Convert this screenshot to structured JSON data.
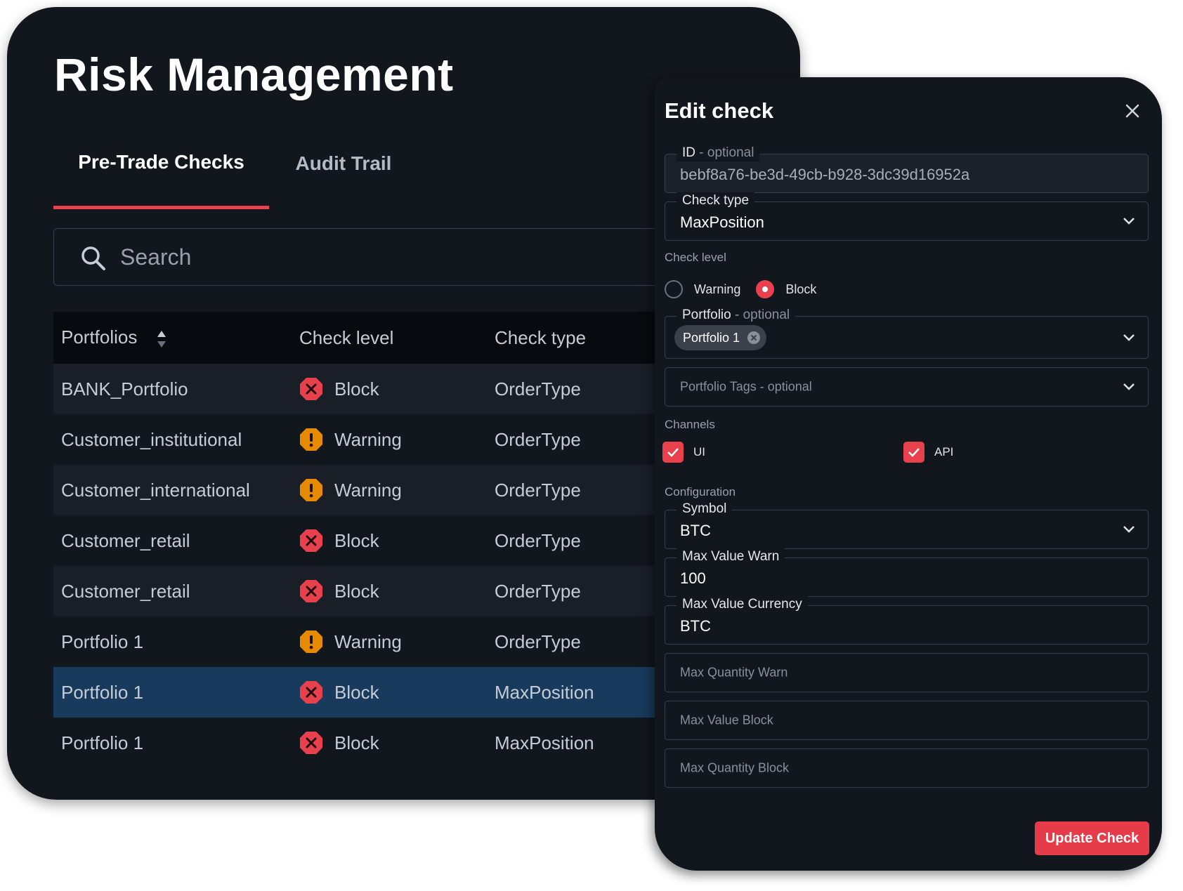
{
  "page": {
    "title": "Risk Management"
  },
  "tabs": [
    {
      "label": "Pre-Trade Checks",
      "active": true
    },
    {
      "label": "Audit Trail",
      "active": false
    }
  ],
  "search": {
    "placeholder": "Search",
    "icon": "search-icon"
  },
  "table": {
    "headers": {
      "portfolios": "Portfolios",
      "check_level": "Check level",
      "check_type": "Check type"
    },
    "rows": [
      {
        "portfolio": "BANK_Portfolio",
        "level": "Block",
        "type": "OrderType",
        "selected": false
      },
      {
        "portfolio": "Customer_institutional",
        "level": "Warning",
        "type": "OrderType",
        "selected": false
      },
      {
        "portfolio": "Customer_international",
        "level": "Warning",
        "type": "OrderType",
        "selected": false
      },
      {
        "portfolio": "Customer_retail",
        "level": "Block",
        "type": "OrderType",
        "selected": false
      },
      {
        "portfolio": "Customer_retail",
        "level": "Block",
        "type": "OrderType",
        "selected": false
      },
      {
        "portfolio": "Portfolio 1",
        "level": "Warning",
        "type": "OrderType",
        "selected": false
      },
      {
        "portfolio": "Portfolio 1",
        "level": "Block",
        "type": "MaxPosition",
        "selected": true
      },
      {
        "portfolio": "Portfolio 1",
        "level": "Block",
        "type": "MaxPosition",
        "selected": false
      }
    ]
  },
  "edit_panel": {
    "title": "Edit check",
    "id_field": {
      "label": "ID",
      "optional": " - optional",
      "value": "bebf8a76-be3d-49cb-b928-3dc39d16952a"
    },
    "check_type": {
      "label": "Check type",
      "value": "MaxPosition"
    },
    "check_level": {
      "label": "Check level",
      "options": [
        "Warning",
        "Block"
      ],
      "selected": "Block"
    },
    "portfolio": {
      "label": "Portfolio",
      "optional": " - optional",
      "chip": "Portfolio 1"
    },
    "portfolio_tags": {
      "placeholder": "Portfolio Tags - optional"
    },
    "channels": {
      "label": "Channels",
      "ui": "UI",
      "api": "API"
    },
    "configuration": {
      "label": "Configuration",
      "symbol": {
        "label": "Symbol",
        "value": "BTC"
      },
      "max_value_warn": {
        "label": "Max Value Warn",
        "value": "100"
      },
      "max_value_currency": {
        "label": "Max Value Currency",
        "value": "BTC"
      },
      "max_quantity_warn": {
        "placeholder": "Max Quantity Warn"
      },
      "max_value_block": {
        "placeholder": "Max Value Block"
      },
      "max_quantity_block": {
        "placeholder": "Max Quantity Block"
      }
    },
    "submit_label": "Update Check"
  },
  "colors": {
    "accent": "#e8404c",
    "warning": "#e68a00",
    "block": "#e8404c",
    "selected_row": "#183a5c",
    "background": "#12161d"
  }
}
